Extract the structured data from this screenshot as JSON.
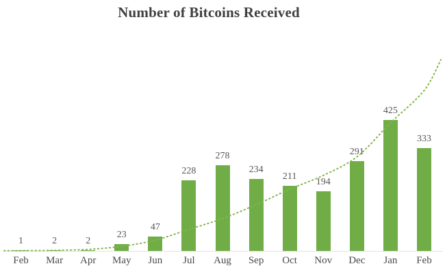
{
  "title": "Number of Bitcoins Received",
  "colors": {
    "bar": "#70ad47",
    "trend": "#84b64e",
    "value_label": "#555555",
    "axis_label": "#4a4a4a",
    "title": "#3f3f3f",
    "baseline": "#e3e3e3"
  },
  "chart_data": {
    "type": "bar",
    "title": "Number of Bitcoins Received",
    "categories": [
      "Feb",
      "Mar",
      "Apr",
      "May",
      "Jun",
      "Jul",
      "Aug",
      "Sep",
      "Oct",
      "Nov",
      "Dec",
      "Jan",
      "Feb"
    ],
    "values": [
      1,
      2,
      2,
      23,
      47,
      228,
      278,
      234,
      211,
      194,
      291,
      425,
      333
    ],
    "xlabel": "",
    "ylabel": "",
    "ylim": [
      0,
      680
    ],
    "grid": false,
    "legend": false,
    "data_labels": true,
    "trendline": {
      "style": "dotted",
      "values": [
        1,
        2,
        5,
        15,
        35,
        70,
        105,
        150,
        200,
        245,
        305,
        415,
        520
      ],
      "end_value": 620
    }
  }
}
